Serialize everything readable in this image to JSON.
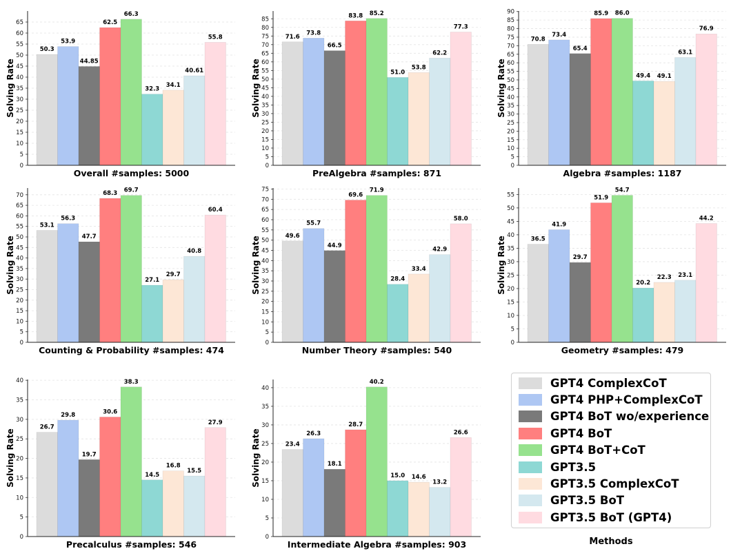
{
  "ylabel": "Solving Rate",
  "legend_title": "Methods",
  "methods": [
    {
      "name": "GPT4 ComplexCoT",
      "color": "#dcdcdc"
    },
    {
      "name": "GPT4 PHP+ComplexCoT",
      "color": "#aec7f3"
    },
    {
      "name": "GPT4 BoT wo/experience",
      "color": "#7a7a7a"
    },
    {
      "name": "GPT4 BoT",
      "color": "#ff7f7f"
    },
    {
      "name": "GPT4 BoT+CoT",
      "color": "#96e28e"
    },
    {
      "name": "GPT3.5",
      "color": "#8ed8d4"
    },
    {
      "name": "GPT3.5 ComplexCoT",
      "color": "#fde7d6"
    },
    {
      "name": "GPT3.5 BoT",
      "color": "#d4e8ef"
    },
    {
      "name": "GPT3.5 BoT (GPT4)",
      "color": "#ffdbe1"
    }
  ],
  "chart_data": [
    {
      "type": "bar",
      "title": "Overall #samples: 5000",
      "ylabel": "Solving Rate",
      "ylim": [
        0,
        70
      ],
      "yticks": [
        0,
        5,
        10,
        15,
        20,
        25,
        30,
        35,
        40,
        45,
        50,
        55,
        60,
        65
      ],
      "values": [
        50.3,
        53.9,
        44.85,
        62.5,
        66.3,
        32.3,
        34.1,
        40.61,
        55.8
      ],
      "labels": [
        "50.3",
        "53.9",
        "44.85",
        "62.5",
        "66.3",
        "32.3",
        "34.1",
        "40.61",
        "55.8"
      ]
    },
    {
      "type": "bar",
      "title": "PreAlgebra #samples: 871",
      "ylabel": "Solving Rate",
      "ylim": [
        0,
        89.5
      ],
      "yticks": [
        0,
        5,
        10,
        15,
        20,
        25,
        30,
        35,
        40,
        45,
        50,
        55,
        60,
        65,
        70,
        75,
        80,
        85
      ],
      "values": [
        71.6,
        73.8,
        66.5,
        83.8,
        85.2,
        51.0,
        53.8,
        62.2,
        77.3
      ],
      "labels": [
        "71.6",
        "73.8",
        "66.5",
        "83.8",
        "85.2",
        "51.0",
        "53.8",
        "62.2",
        "77.3"
      ]
    },
    {
      "type": "bar",
      "title": "Algebra #samples: 1187",
      "ylabel": "Solving Rate",
      "ylim": [
        0,
        90.3
      ],
      "yticks": [
        0,
        5,
        10,
        15,
        20,
        25,
        30,
        35,
        40,
        45,
        50,
        55,
        60,
        65,
        70,
        75,
        80,
        85,
        90
      ],
      "values": [
        70.8,
        73.4,
        65.4,
        85.9,
        86.0,
        49.4,
        49.1,
        63.1,
        76.9
      ],
      "labels": [
        "70.8",
        "73.4",
        "65.4",
        "85.9",
        "86.0",
        "49.4",
        "49.1",
        "63.1",
        "76.9"
      ]
    },
    {
      "type": "bar",
      "title": "Counting & Probability #samples: 474",
      "ylabel": "Solving Rate",
      "ylim": [
        0,
        73.2
      ],
      "yticks": [
        0,
        5,
        10,
        15,
        20,
        25,
        30,
        35,
        40,
        45,
        50,
        55,
        60,
        65,
        70
      ],
      "values": [
        53.1,
        56.3,
        47.7,
        68.3,
        69.7,
        27.1,
        29.7,
        40.8,
        60.4
      ],
      "labels": [
        "53.1",
        "56.3",
        "47.7",
        "68.3",
        "69.7",
        "27.1",
        "29.7",
        "40.8",
        "60.4"
      ]
    },
    {
      "type": "bar",
      "title": "Number Theory #samples: 540",
      "ylabel": "Solving Rate",
      "ylim": [
        0,
        75.5
      ],
      "yticks": [
        0,
        5,
        10,
        15,
        20,
        25,
        30,
        35,
        40,
        45,
        50,
        55,
        60,
        65,
        70,
        75
      ],
      "values": [
        49.6,
        55.7,
        44.9,
        69.6,
        71.9,
        28.4,
        33.4,
        42.9,
        58.0
      ],
      "labels": [
        "49.6",
        "55.7",
        "44.9",
        "69.6",
        "71.9",
        "28.4",
        "33.4",
        "42.9",
        "58.0"
      ]
    },
    {
      "type": "bar",
      "title": "Geometry #samples: 479",
      "ylabel": "Solving Rate",
      "ylim": [
        0,
        57.4
      ],
      "yticks": [
        0,
        5,
        10,
        15,
        20,
        25,
        30,
        35,
        40,
        45,
        50,
        55
      ],
      "values": [
        36.5,
        41.9,
        29.7,
        51.9,
        54.7,
        20.2,
        22.3,
        23.1,
        44.2
      ],
      "labels": [
        "36.5",
        "41.9",
        "29.7",
        "51.9",
        "54.7",
        "20.2",
        "22.3",
        "23.1",
        "44.2"
      ]
    },
    {
      "type": "bar",
      "title": "Precalculus #samples: 546",
      "ylabel": "Solving Rate",
      "ylim": [
        0,
        40.2
      ],
      "yticks": [
        0,
        5,
        10,
        15,
        20,
        25,
        30,
        35,
        40
      ],
      "values": [
        26.7,
        29.8,
        19.7,
        30.6,
        38.3,
        14.5,
        16.8,
        15.5,
        27.9
      ],
      "labels": [
        "26.7",
        "29.8",
        "19.7",
        "30.6",
        "38.3",
        "14.5",
        "16.8",
        "15.5",
        "27.9"
      ]
    },
    {
      "type": "bar",
      "title": "Intermediate Algebra #samples: 903",
      "ylabel": "Solving Rate",
      "ylim": [
        0,
        42.2
      ],
      "yticks": [
        0,
        5,
        10,
        15,
        20,
        25,
        30,
        35,
        40
      ],
      "values": [
        23.4,
        26.3,
        18.1,
        28.7,
        40.2,
        15.0,
        14.6,
        13.2,
        26.6
      ],
      "labels": [
        "23.4",
        "26.3",
        "18.1",
        "28.7",
        "40.2",
        "15.0",
        "14.6",
        "13.2",
        "26.6"
      ]
    }
  ]
}
